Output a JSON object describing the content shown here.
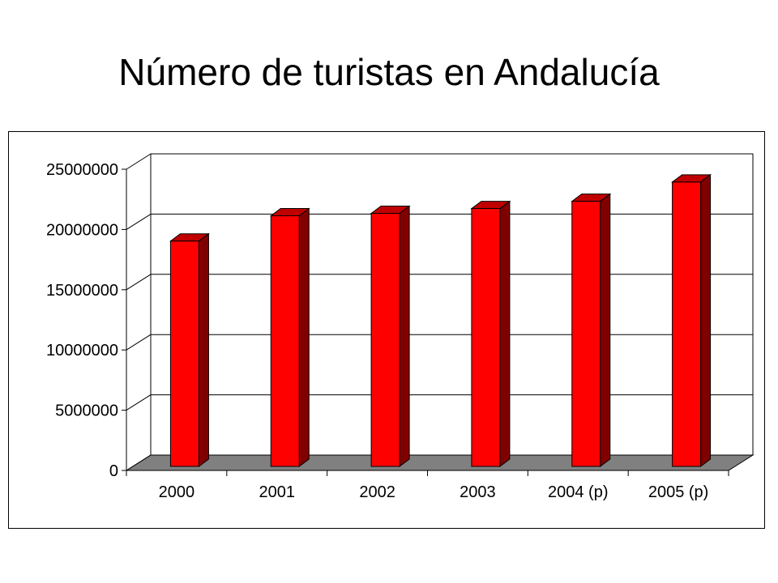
{
  "page": {
    "title": "Número de turistas en Andalucía"
  },
  "chart_data": {
    "type": "bar",
    "categories": [
      "2000",
      "2001",
      "2002",
      "2003",
      "2004 (p)",
      "2005 (p)"
    ],
    "values": [
      18700000,
      20800000,
      21000000,
      21400000,
      22000000,
      23600000
    ],
    "y_ticks": [
      "0",
      "5000000",
      "10000000",
      "15000000",
      "20000000",
      "25000000"
    ],
    "ylim": [
      0,
      25000000
    ],
    "grid": true,
    "legend": "none",
    "colors": {
      "bar_front": "#ff0000",
      "bar_top": "#c00000",
      "bar_side": "#800000",
      "floor": "#808080",
      "gridline": "#000000"
    }
  }
}
